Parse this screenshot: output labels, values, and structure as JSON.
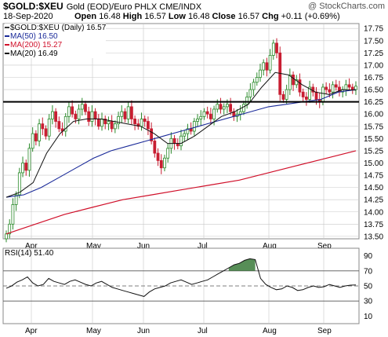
{
  "header": {
    "symbol": "$GOLD:$XEU",
    "description": "Gold (EOD)/Euro PHLX  CME/INDX",
    "date": "18-Sep-2020",
    "open_label": "Open",
    "open": "16.48",
    "high_label": "High",
    "high": "16.57",
    "low_label": "Low",
    "low": "16.48",
    "close_label": "Close",
    "close": "16.57",
    "chg_label": "Chg",
    "chg": "+0.11 (+0.69%)",
    "copyright": "@ StockCharts.com"
  },
  "legend": {
    "price": "$GOLD:$XEU (Daily) 16.57",
    "ma50": "MA(50) 16.50",
    "ma200": "MA(200) 15.27",
    "ma20": "MA(20) 16.49"
  },
  "rsi_label": "RSI(14) 51.40",
  "colors": {
    "ma50": "#1a2a99",
    "ma200": "#d0102a",
    "ma20": "#111111",
    "up": "#2a8a2a",
    "down": "#c81e32",
    "rsi_fill": "#3a7a3a",
    "hline": "#000000",
    "grid": "#c8c8c8"
  },
  "chart_data": [
    {
      "type": "candlestick",
      "title": "$GOLD:$XEU",
      "xlabel": "",
      "ylabel": "",
      "x_tick_labels": [
        "Apr",
        "May",
        "Jun",
        "Jul",
        "Aug",
        "Sep"
      ],
      "y_ticks": [
        13.5,
        13.75,
        14.0,
        14.25,
        14.5,
        14.75,
        15.0,
        15.25,
        15.5,
        15.75,
        16.0,
        16.25,
        16.5,
        16.75,
        17.0,
        17.25,
        17.5,
        17.75
      ],
      "ylim": [
        13.45,
        17.85
      ],
      "grid": true,
      "horizontal_line": 16.25,
      "series": [
        {
          "name": "$GOLD:$XEU (Daily)",
          "close": [
            13.55,
            13.75,
            14.15,
            14.35,
            14.8,
            15.0,
            14.85,
            15.3,
            15.6,
            15.45,
            15.8,
            15.7,
            15.55,
            15.9,
            16.05,
            15.85,
            15.7,
            15.65,
            15.95,
            16.15,
            16.0,
            15.9,
            16.1,
            16.2,
            16.05,
            15.85,
            16.05,
            15.9,
            15.75,
            15.9,
            15.8,
            15.85,
            15.7,
            15.8,
            15.95,
            16.05,
            15.9,
            16.15,
            15.9,
            15.8,
            15.75,
            15.9,
            15.85,
            15.7,
            15.45,
            15.2,
            15.05,
            14.9,
            15.1,
            15.3,
            15.5,
            15.4,
            15.35,
            15.55,
            15.6,
            15.7,
            15.65,
            15.85,
            15.9,
            15.95,
            16.05,
            16.0,
            15.9,
            16.1,
            16.2,
            16.1,
            16.15,
            16.2,
            16.05,
            15.95,
            16.0,
            16.05,
            16.2,
            16.35,
            16.5,
            16.65,
            16.75,
            16.9,
            17.05,
            16.9,
            17.2,
            17.45,
            17.25,
            16.4,
            16.3,
            16.5,
            16.8,
            16.6,
            16.7,
            16.45,
            16.35,
            16.3,
            16.55,
            16.45,
            16.3,
            16.25,
            16.55,
            16.5,
            16.45,
            16.6,
            16.55,
            16.45,
            16.5,
            16.6,
            16.55,
            16.5,
            16.57
          ]
        },
        {
          "name": "MA(50)",
          "values": [
            14.3,
            14.35,
            14.5,
            14.7,
            14.9,
            15.1,
            15.25,
            15.35,
            15.45,
            15.55,
            15.65,
            15.75,
            15.85,
            15.95,
            16.05,
            16.15,
            16.2,
            16.25,
            16.3,
            16.45,
            16.5
          ]
        },
        {
          "name": "MA(200)",
          "values": [
            13.55,
            13.75,
            13.95,
            14.1,
            14.25,
            14.35,
            14.45,
            14.55,
            14.65,
            14.8,
            14.95,
            15.1,
            15.25
          ]
        },
        {
          "name": "MA(20)",
          "values": [
            14.3,
            14.4,
            14.6,
            15.2,
            15.6,
            15.85,
            15.9,
            15.9,
            15.85,
            15.8,
            15.75,
            15.6,
            15.4,
            15.4,
            15.55,
            15.75,
            15.95,
            16.05,
            16.2,
            16.55,
            16.85,
            16.8,
            16.6,
            16.45,
            16.4,
            16.5,
            16.49
          ]
        }
      ]
    },
    {
      "type": "line",
      "title": "RSI(14)",
      "xlabel": "",
      "ylabel": "",
      "x_tick_labels": [
        "Apr",
        "May",
        "Jun",
        "Jul",
        "Aug",
        "Sep"
      ],
      "y_ticks": [
        10,
        30,
        50,
        70,
        90
      ],
      "ylim": [
        0,
        100
      ],
      "reference_lines": [
        30,
        50,
        70
      ],
      "series": [
        {
          "name": "RSI(14)",
          "values": [
            47,
            50,
            55,
            58,
            62,
            54,
            50,
            52,
            60,
            56,
            54,
            52,
            56,
            58,
            55,
            52,
            50,
            54,
            56,
            52,
            48,
            46,
            44,
            42,
            40,
            38,
            36,
            42,
            46,
            48,
            50,
            54,
            56,
            58,
            55,
            52,
            54,
            56,
            58,
            62,
            66,
            70,
            74,
            78,
            80,
            84,
            86,
            85,
            60,
            52,
            48,
            45,
            46,
            50,
            48,
            44,
            45,
            48,
            50,
            48,
            49,
            52,
            50,
            48,
            50,
            51,
            51.4
          ]
        }
      ]
    }
  ]
}
